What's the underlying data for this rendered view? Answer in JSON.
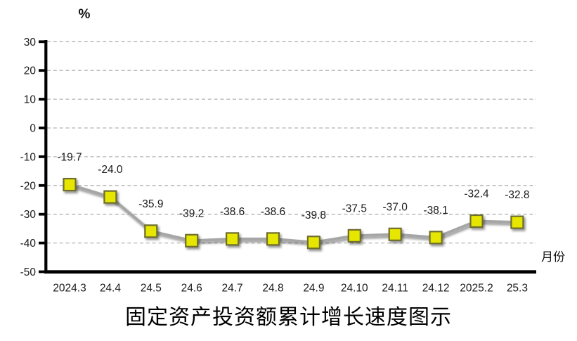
{
  "chart_data": {
    "type": "line",
    "title": "固定资产投资额累计增长速度图示",
    "ylabel": "%",
    "xlabel": "月份",
    "categories": [
      "2024.3",
      "24.4",
      "24.5",
      "24.6",
      "24.7",
      "24.8",
      "24.9",
      "24.10",
      "24.11",
      "24.12",
      "2025.2",
      "25.3"
    ],
    "values": [
      -19.7,
      -24.0,
      -35.9,
      -39.2,
      -38.6,
      -38.6,
      -39.8,
      -37.5,
      -37.0,
      -38.1,
      -32.4,
      -32.8
    ],
    "point_labels": [
      "-19.7",
      "-24.0",
      "-35.9",
      "-39.2",
      "-38.6",
      "-38.6",
      "-39.8",
      "-37.5",
      "-37.0",
      "-38.1",
      "-32.4",
      "-32.8"
    ],
    "y_ticks": [
      30,
      20,
      10,
      0,
      -10,
      -20,
      -30,
      -40,
      -50
    ],
    "ylim": [
      -50,
      30
    ],
    "grid": "horizontal-dashed",
    "legend": "none",
    "colors": {
      "marker_fill": "#e6e600",
      "marker_border": "#6e6e2e",
      "line": "#a6a6a6",
      "gridline": "#b3b3b3",
      "axis": "#000000",
      "text": "#1a1a1a"
    }
  }
}
